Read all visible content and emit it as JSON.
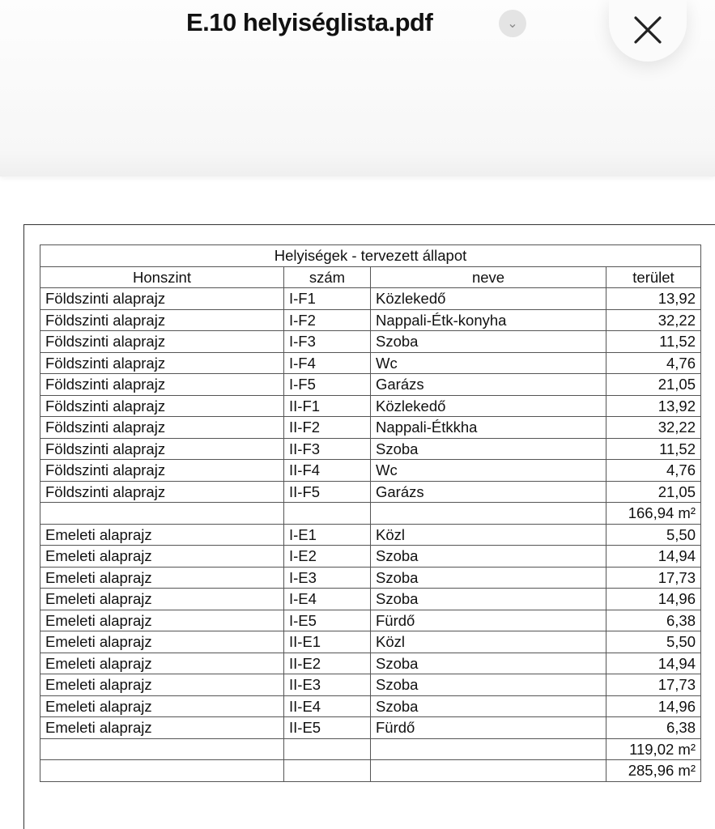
{
  "header": {
    "title": "E.10 helyiséglista.pdf",
    "menu_icon": "chevron-down-icon",
    "close_icon": "close-icon"
  },
  "table": {
    "title": "Helyiségek - tervezett állapot",
    "columns": [
      "Honszint",
      "szám",
      "neve",
      "terület"
    ],
    "rows": [
      [
        "Földszinti alaprajz",
        "I-F1",
        "Közlekedő",
        "13,92"
      ],
      [
        "Földszinti alaprajz",
        "I-F2",
        "Nappali-Étk-konyha",
        "32,22"
      ],
      [
        "Földszinti alaprajz",
        "I-F3",
        "Szoba",
        "11,52"
      ],
      [
        "Földszinti alaprajz",
        "I-F4",
        "Wc",
        "4,76"
      ],
      [
        "Földszinti alaprajz",
        "I-F5",
        "Garázs",
        "21,05"
      ],
      [
        "Földszinti alaprajz",
        "II-F1",
        "Közlekedő",
        "13,92"
      ],
      [
        "Földszinti alaprajz",
        "II-F2",
        "Nappali-Étkkha",
        "32,22"
      ],
      [
        "Földszinti alaprajz",
        "II-F3",
        "Szoba",
        "11,52"
      ],
      [
        "Földszinti alaprajz",
        "II-F4",
        "Wc",
        "4,76"
      ],
      [
        "Földszinti alaprajz",
        "II-F5",
        "Garázs",
        "21,05"
      ],
      [
        "",
        "",
        "",
        "166,94 m²"
      ],
      [
        "Emeleti alaprajz",
        "I-E1",
        "Közl",
        "5,50"
      ],
      [
        "Emeleti alaprajz",
        "I-E2",
        "Szoba",
        "14,94"
      ],
      [
        "Emeleti alaprajz",
        "I-E3",
        "Szoba",
        "17,73"
      ],
      [
        "Emeleti alaprajz",
        "I-E4",
        "Szoba",
        "14,96"
      ],
      [
        "Emeleti alaprajz",
        "I-E5",
        "Fürdő",
        "6,38"
      ],
      [
        "Emeleti alaprajz",
        "II-E1",
        "Közl",
        "5,50"
      ],
      [
        "Emeleti alaprajz",
        "II-E2",
        "Szoba",
        "14,94"
      ],
      [
        "Emeleti alaprajz",
        "II-E3",
        "Szoba",
        "17,73"
      ],
      [
        "Emeleti alaprajz",
        "II-E4",
        "Szoba",
        "14,96"
      ],
      [
        "Emeleti alaprajz",
        "II-E5",
        "Fürdő",
        "6,38"
      ],
      [
        "",
        "",
        "",
        "119,02 m²"
      ],
      [
        "",
        "",
        "",
        "285,96 m²"
      ]
    ]
  }
}
